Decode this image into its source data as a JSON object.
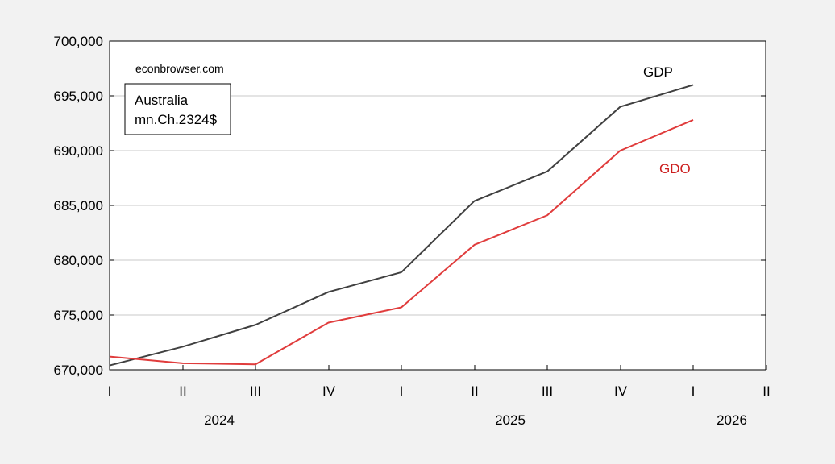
{
  "chart_data": {
    "type": "line",
    "title": "",
    "xlabel": "",
    "ylabel": "",
    "x": [
      "2024Q1",
      "2024Q2",
      "2024Q3",
      "2024Q4",
      "2025Q1",
      "2025Q2",
      "2025Q3",
      "2025Q4",
      "2026Q1"
    ],
    "x_tick_labels": [
      "I",
      "II",
      "III",
      "IV",
      "I",
      "II",
      "III",
      "IV",
      "I",
      "II"
    ],
    "year_labels": [
      "2024",
      "2025",
      "2026"
    ],
    "ylim": [
      670000,
      700000
    ],
    "y_ticks": [
      670000,
      675000,
      680000,
      685000,
      690000,
      695000,
      700000
    ],
    "y_tick_labels": [
      "670,000",
      "675,000",
      "680,000",
      "685,000",
      "690,000",
      "695,000",
      "700,000"
    ],
    "grid": "horizontal",
    "series": [
      {
        "name": "GDP",
        "color": "#404040",
        "values": [
          670400,
          672100,
          674100,
          677100,
          678900,
          685400,
          688100,
          694000,
          696000
        ]
      },
      {
        "name": "GDO",
        "color": "#e03c3c",
        "values": [
          671200,
          670600,
          670500,
          674300,
          675700,
          681400,
          684100,
          690000,
          692800
        ]
      }
    ],
    "annotations": {
      "source": "econbrowser.com",
      "box_line1": "Australia",
      "box_line2": "mn.Ch.2324$"
    }
  }
}
